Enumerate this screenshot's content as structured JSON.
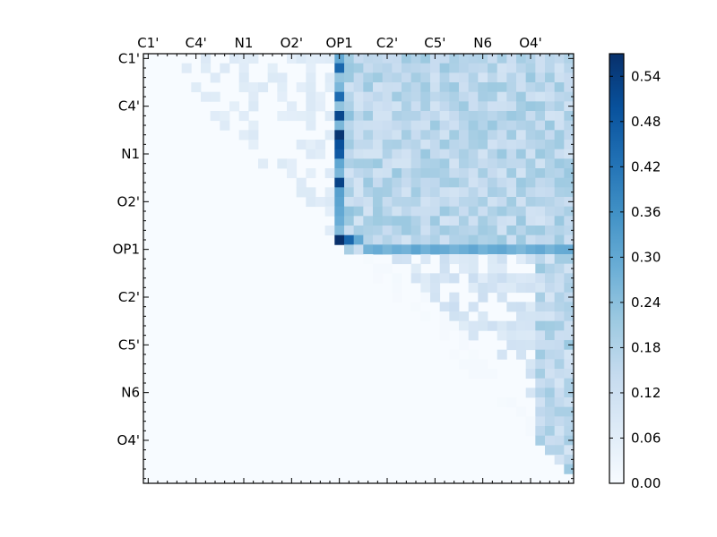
{
  "chart_data": {
    "type": "heatmap",
    "title": "",
    "xlabel": "",
    "ylabel": "",
    "x_tick_labels": [
      "C1'",
      "C4'",
      "N1",
      "O2'",
      "OP1",
      "C2'",
      "C5'",
      "N6",
      "O4'"
    ],
    "y_tick_labels": [
      "C1'",
      "C4'",
      "N1",
      "O2'",
      "OP1",
      "C2'",
      "C5'",
      "N6",
      "O4'"
    ],
    "matrix_size": 45,
    "tick_every": 5,
    "colormap": "Blues",
    "colorbar": {
      "range": [
        0.0,
        0.57
      ],
      "ticks": [
        "0.00",
        "0.06",
        "0.12",
        "0.18",
        "0.24",
        "0.30",
        "0.36",
        "0.42",
        "0.48",
        "0.54"
      ],
      "tick_values": [
        0.0,
        0.06,
        0.12,
        0.18,
        0.24,
        0.3,
        0.36,
        0.42,
        0.48,
        0.54
      ]
    },
    "structure": "upper-triangular; strong column near OP1 (col 20), strong row at OP1 (row 20), moderate block at top-right",
    "hotspots": [
      {
        "row": 0,
        "col": 20,
        "value": 0.3
      },
      {
        "row": 1,
        "col": 20,
        "value": 0.45
      },
      {
        "row": 4,
        "col": 20,
        "value": 0.44
      },
      {
        "row": 6,
        "col": 20,
        "value": 0.52
      },
      {
        "row": 8,
        "col": 20,
        "value": 0.56
      },
      {
        "row": 9,
        "col": 20,
        "value": 0.5
      },
      {
        "row": 10,
        "col": 20,
        "value": 0.48
      },
      {
        "row": 13,
        "col": 20,
        "value": 0.53
      },
      {
        "row": 14,
        "col": 20,
        "value": 0.32
      },
      {
        "row": 16,
        "col": 20,
        "value": 0.3
      },
      {
        "row": 19,
        "col": 20,
        "value": 0.57
      },
      {
        "row": 19,
        "col": 21,
        "value": 0.45
      },
      {
        "row": 19,
        "col": 22,
        "value": 0.3
      }
    ]
  }
}
